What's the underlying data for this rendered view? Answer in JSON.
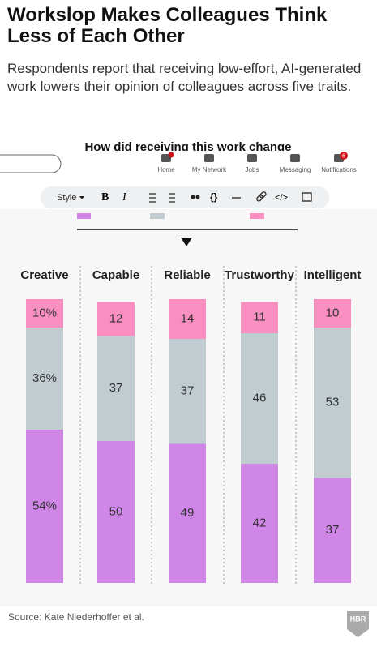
{
  "header": {
    "title": "Workslop Makes Colleagues Think Less of Each Other",
    "subtitle": "Respondents report that receiving low-effort, AI-generated work lowers their opinion of colleagues across five traits."
  },
  "nav": {
    "items": [
      "Home",
      "My Network",
      "Jobs",
      "Messaging",
      "Notifications"
    ],
    "badge": "6"
  },
  "toolbar": {
    "style": "Style",
    "bold": "B",
    "italic": "I",
    "code_block": "{}",
    "code": "</>"
  },
  "chart_data": {
    "type": "stacked-bar",
    "title": "How did receiving this work change",
    "categories": [
      "Creative",
      "Capable",
      "Reliable",
      "Trustworthy",
      "Intelligent"
    ],
    "ylim": [
      0,
      100
    ],
    "series": [
      {
        "color": "#cf86e6",
        "values": [
          54,
          50,
          49,
          42,
          37
        ],
        "value_labels": [
          "54%",
          "50",
          "49",
          "42",
          "37"
        ]
      },
      {
        "color": "#c1ccd1",
        "values": [
          36,
          37,
          37,
          46,
          53
        ],
        "value_labels": [
          "36%",
          "37",
          "37",
          "46",
          "53"
        ]
      },
      {
        "color": "#f98fc0",
        "values": [
          10,
          12,
          14,
          11,
          10
        ],
        "value_labels": [
          "10%",
          "12",
          "14",
          "11",
          "10"
        ]
      }
    ]
  },
  "source": "Source: Kate Niederhoffer et al.",
  "logo": "HBR"
}
